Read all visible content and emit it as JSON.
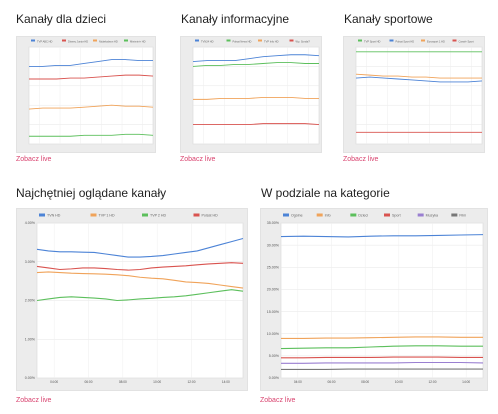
{
  "links": {
    "live": "Zobacz live"
  },
  "colors": {
    "accent": "#d9436f",
    "blue": "#4c83d6",
    "orange": "#f0a35a",
    "green": "#5cbf5c",
    "red": "#d9534f",
    "purple": "#9a7fd1",
    "gray": "#777777"
  },
  "charts": [
    {
      "title": "Kanały dla dzieci",
      "chart_data": {
        "type": "line",
        "legend_position": "top",
        "grid": true,
        "series": [
          {
            "name": "TVP ABC HD",
            "color": "#4c83d6",
            "values": [
              0.8,
              0.8,
              0.81,
              0.81,
              0.83,
              0.85,
              0.87,
              0.87,
              0.86,
              0.86
            ]
          },
          {
            "name": "Disney Junior HD",
            "color": "#d9534f",
            "values": [
              0.67,
              0.67,
              0.67,
              0.68,
              0.68,
              0.69,
              0.7,
              0.71,
              0.71,
              0.7
            ]
          },
          {
            "name": "Nickelodeon HD",
            "color": "#f0a35a",
            "values": [
              0.36,
              0.37,
              0.37,
              0.37,
              0.38,
              0.39,
              0.4,
              0.39,
              0.39,
              0.38
            ]
          },
          {
            "name": "Minimini+ HD",
            "color": "#5cbf5c",
            "values": [
              0.08,
              0.08,
              0.08,
              0.08,
              0.09,
              0.09,
              0.09,
              0.1,
              0.1,
              0.09
            ]
          }
        ],
        "ylim": [
          0,
          1
        ]
      }
    },
    {
      "title": "Kanały informacyjne",
      "chart_data": {
        "type": "line",
        "legend_position": "top",
        "grid": true,
        "series": [
          {
            "name": "TVN24 HD",
            "color": "#4c83d6",
            "values": [
              0.85,
              0.86,
              0.86,
              0.86,
              0.88,
              0.9,
              0.91,
              0.92,
              0.92,
              0.91
            ]
          },
          {
            "name": "Polsat News HD",
            "color": "#5cbf5c",
            "values": [
              0.8,
              0.81,
              0.81,
              0.82,
              0.82,
              0.83,
              0.84,
              0.84,
              0.83,
              0.83
            ]
          },
          {
            "name": "TVP Info HD",
            "color": "#f0a35a",
            "values": [
              0.46,
              0.46,
              0.47,
              0.47,
              0.47,
              0.48,
              0.48,
              0.48,
              0.47,
              0.47
            ]
          },
          {
            "name": "Wp. Sonda?",
            "color": "#d9534f",
            "values": [
              0.2,
              0.2,
              0.2,
              0.2,
              0.2,
              0.21,
              0.21,
              0.21,
              0.21,
              0.2
            ]
          }
        ],
        "ylim": [
          0,
          1
        ]
      }
    },
    {
      "title": "Kanały sportowe",
      "chart_data": {
        "type": "line",
        "legend_position": "top",
        "grid": true,
        "series": [
          {
            "name": "TVP Sport HD",
            "color": "#5cbf5c",
            "values": [
              0.95,
              0.95,
              0.95,
              0.95,
              0.95,
              0.95,
              0.95,
              0.95,
              0.95,
              0.95
            ]
          },
          {
            "name": "Polsat Sport HD",
            "color": "#4c83d6",
            "values": [
              0.68,
              0.69,
              0.68,
              0.67,
              0.66,
              0.65,
              0.64,
              0.64,
              0.64,
              0.65
            ]
          },
          {
            "name": "Eurosport 1 HD",
            "color": "#f0a35a",
            "values": [
              0.72,
              0.71,
              0.7,
              0.7,
              0.69,
              0.69,
              0.68,
              0.68,
              0.68,
              0.68
            ]
          },
          {
            "name": "Canal+ Sport",
            "color": "#d9534f",
            "values": [
              0.12,
              0.12,
              0.12,
              0.12,
              0.12,
              0.12,
              0.12,
              0.12,
              0.12,
              0.12
            ]
          }
        ],
        "ylim": [
          0,
          1
        ]
      }
    },
    {
      "title": "Najchętniej oglądane kanały",
      "chart_data": {
        "type": "line",
        "legend_position": "top",
        "grid": true,
        "yticks": [
          "0.00%",
          "1.00%",
          "2.00%",
          "3.00%",
          "4.00%"
        ],
        "x_ticks": [
          "04:00",
          "06:00",
          "08:00",
          "10:00",
          "12:00",
          "14:00"
        ],
        "series": [
          {
            "name": "TVN HD",
            "color": "#4c83d6",
            "values": [
              4.15,
              4.1,
              4.07,
              4.07,
              4.06,
              4.05,
              4.0,
              3.95,
              3.9,
              3.9,
              3.92,
              3.95,
              4.0,
              4.05,
              4.1,
              4.2,
              4.3,
              4.4,
              4.5
            ]
          },
          {
            "name": "TVP 1 HD",
            "color": "#f0a35a",
            "values": [
              3.4,
              3.42,
              3.4,
              3.38,
              3.37,
              3.36,
              3.35,
              3.33,
              3.3,
              3.25,
              3.22,
              3.2,
              3.15,
              3.1,
              3.08,
              3.05,
              3.0,
              2.95,
              2.9
            ]
          },
          {
            "name": "TVP 2 HD",
            "color": "#5cbf5c",
            "values": [
              2.5,
              2.55,
              2.6,
              2.62,
              2.6,
              2.58,
              2.55,
              2.5,
              2.52,
              2.55,
              2.57,
              2.6,
              2.62,
              2.65,
              2.7,
              2.75,
              2.8,
              2.85,
              2.8
            ]
          },
          {
            "name": "Polsat HD",
            "color": "#d9534f",
            "values": [
              3.6,
              3.55,
              3.5,
              3.52,
              3.55,
              3.55,
              3.53,
              3.5,
              3.48,
              3.5,
              3.55,
              3.58,
              3.6,
              3.62,
              3.65,
              3.68,
              3.7,
              3.72,
              3.7
            ]
          }
        ],
        "ylim": [
          0,
          5
        ]
      }
    },
    {
      "title": "W podziale na kategorie",
      "chart_data": {
        "type": "line",
        "legend_position": "top",
        "grid": true,
        "yticks": [
          "0.00%",
          "5.00%",
          "10.00%",
          "15.00%",
          "20.00%",
          "25.00%",
          "30.00%",
          "35.00%"
        ],
        "x_ticks": [
          "04:00",
          "06:00",
          "08:00",
          "10:00",
          "12:00",
          "14:00"
        ],
        "series": [
          {
            "name": "Ogólne",
            "color": "#4c83d6",
            "values": [
              36.5,
              36.6,
              36.5,
              36.4,
              36.6,
              36.7,
              36.7,
              36.8,
              36.9,
              37.0
            ]
          },
          {
            "name": "Info",
            "color": "#f0a35a",
            "values": [
              10.2,
              10.2,
              10.3,
              10.3,
              10.4,
              10.5,
              10.6,
              10.6,
              10.5,
              10.5
            ]
          },
          {
            "name": "Dzieci",
            "color": "#5cbf5c",
            "values": [
              7.6,
              7.7,
              7.8,
              7.8,
              8.0,
              8.2,
              8.3,
              8.3,
              8.2,
              8.2
            ]
          },
          {
            "name": "Sport",
            "color": "#d9534f",
            "values": [
              5.2,
              5.2,
              5.3,
              5.3,
              5.3,
              5.4,
              5.4,
              5.4,
              5.3,
              5.3
            ]
          },
          {
            "name": "Muzyka",
            "color": "#9a7fd1",
            "values": [
              3.8,
              3.8,
              3.9,
              3.9,
              3.9,
              3.9,
              4.0,
              4.0,
              4.0,
              3.9
            ]
          },
          {
            "name": "Film",
            "color": "#777777",
            "values": [
              2.2,
              2.2,
              2.2,
              2.3,
              2.3,
              2.3,
              2.3,
              2.3,
              2.3,
              2.3
            ]
          }
        ],
        "ylim": [
          0,
          40
        ]
      }
    }
  ]
}
